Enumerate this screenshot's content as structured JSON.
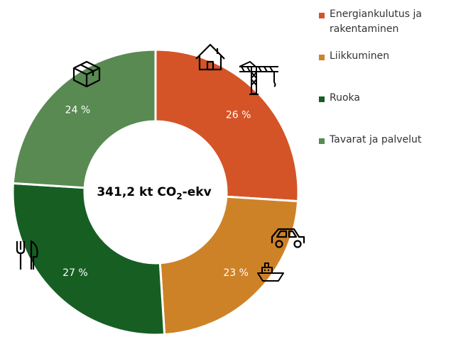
{
  "chart_data": {
    "type": "pie",
    "variant": "donut",
    "center_label": {
      "main": "341,2 kt CO",
      "subscript": "2",
      "suffix": "-ekv"
    },
    "categories": [
      "Energiankulutus ja rakentaminen",
      "Liikkuminen",
      "Ruoka",
      "Tavarat ja palvelut"
    ],
    "values": [
      26,
      23,
      27,
      24
    ],
    "value_labels": [
      "26 %",
      "23 %",
      "27 %",
      "24 %"
    ],
    "colors": [
      "#D45427",
      "#CE8227",
      "#175E23",
      "#588A52"
    ],
    "icons": [
      [
        "house-icon",
        "crane-icon"
      ],
      [
        "car-icon",
        "ship-icon"
      ],
      [
        "fork-knife-icon"
      ],
      [
        "box-icon"
      ]
    ],
    "legend": {
      "position": "right",
      "items": [
        {
          "label": "Energiankulutus ja rakentaminen",
          "color": "#D45427"
        },
        {
          "label": "Liikkuminen",
          "color": "#CE8227"
        },
        {
          "label": "Ruoka",
          "color": "#175E23"
        },
        {
          "label": "Tavarat ja palvelut",
          "color": "#588A52"
        }
      ]
    }
  }
}
